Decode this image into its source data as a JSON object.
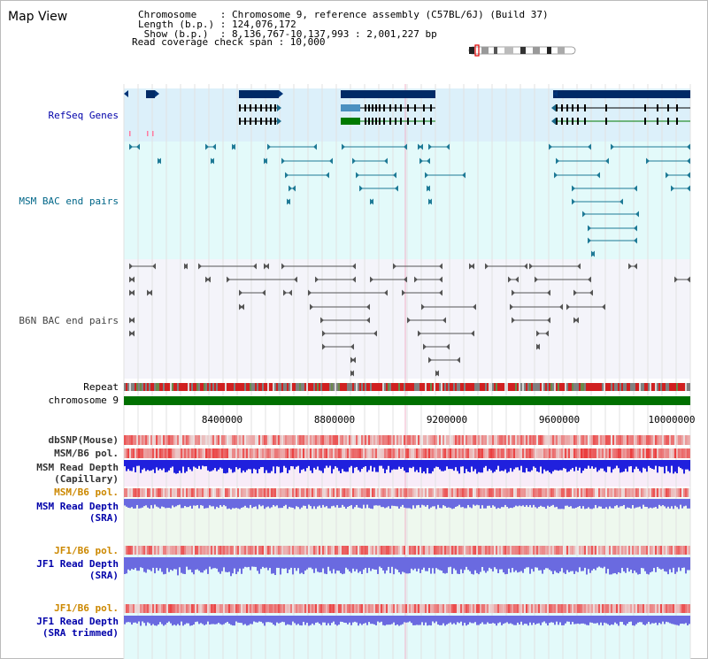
{
  "title": "Map View",
  "header": {
    "lines": [
      "Chromosome    : Chromosome 9, reference assembly (C57BL/6J) (Build 37)",
      "Length (b.p.) : 124,076,172",
      " Show (b.p.)  : 8,136,767-10,137,993 : 2,001,227 bp",
      "Read coverage check span : 10,000"
    ]
  },
  "axis": {
    "tick_labels": [
      "8400000",
      "8800000",
      "9200000",
      "9600000",
      "10000000"
    ],
    "tick_values": [
      8400000,
      8800000,
      9200000,
      9600000,
      10000000
    ],
    "range": [
      8136767,
      10137993
    ]
  },
  "tracks": [
    {
      "id": "refseq",
      "label": "RefSeq Genes",
      "color": "#0000aa"
    },
    {
      "id": "msm-bac",
      "label": "MSM BAC end pairs",
      "color": "#006688"
    },
    {
      "id": "b6n-bac",
      "label": "B6N BAC end pairs",
      "color": "#444444"
    },
    {
      "id": "repeat",
      "label": "Repeat",
      "color": "#000000"
    },
    {
      "id": "chromosome",
      "label": "chromosome 9",
      "color": "#000000"
    },
    {
      "id": "dbsnp",
      "label": "dbSNP(Mouse)",
      "color": "#333333"
    },
    {
      "id": "msm-b6-pol-1",
      "label": "MSM/B6 pol.",
      "color": "#333333"
    },
    {
      "id": "msm-depth-cap",
      "label": "MSM Read Depth",
      "label2": "(Capillary)",
      "color": "#333333"
    },
    {
      "id": "msm-b6-pol-2",
      "label": "MSM/B6 pol.",
      "color": "#cc8800"
    },
    {
      "id": "msm-depth-sra",
      "label": "MSM Read Depth",
      "label2": "(SRA)",
      "color": "#0000aa"
    },
    {
      "id": "jf1-b6-pol-1",
      "label": "JF1/B6 pol.",
      "color": "#cc8800"
    },
    {
      "id": "jf1-depth-sra",
      "label": "JF1 Read Depth",
      "label2": "(SRA)",
      "color": "#0000aa"
    },
    {
      "id": "jf1-b6-pol-2",
      "label": "JF1/B6 pol.",
      "color": "#cc8800"
    },
    {
      "id": "jf1-depth-trim",
      "label": "JF1 Read Depth",
      "label2": "(SRA trimmed)",
      "color": "#0000aa"
    }
  ],
  "colors": {
    "refseq_bg": "#dcf0fa",
    "msm_bg": "#e3fafa",
    "b6n_bg": "#f4f4fa",
    "gene_dark": "#002a66",
    "gene_green": "#007a00",
    "gene_light": "#4a90c0",
    "msm_pair": "#1e7a96",
    "b6n_pair": "#555555",
    "chromosome_bar": "#007000",
    "repeat_red": "#d02020",
    "depth_blue": "#2020dd",
    "depth_light": "#6a6ae0",
    "pol_red": "#e83030"
  }
}
